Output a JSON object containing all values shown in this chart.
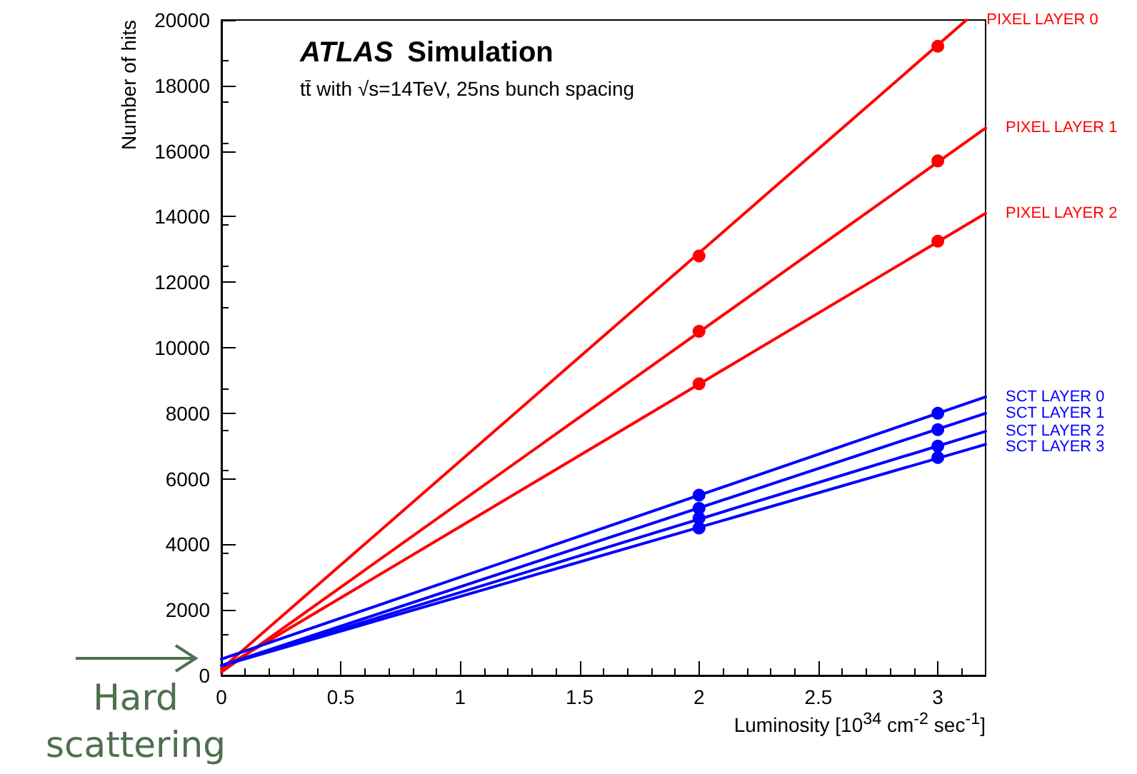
{
  "chart_data": {
    "type": "scatter",
    "title": "ATLAS Simulation",
    "subtitle": "tt̄ with √s=14TeV, 25ns bunch spacing",
    "xlabel": "Luminosity [10$^{34}$ cm$^{-2}$ sec$^{-1}$]",
    "ylabel": "Number of hits",
    "xlim": [
      0,
      3.2
    ],
    "xticks": [
      0,
      0.5,
      1,
      1.5,
      2,
      2.5,
      3
    ],
    "ylim": [
      0,
      20000
    ],
    "yticks": [
      0,
      2000,
      4000,
      6000,
      8000,
      10000,
      12000,
      14000,
      16000,
      18000,
      20000
    ],
    "grid": false,
    "legend": false,
    "marker": "circle",
    "annotations": [
      {
        "text": "Hard scattering",
        "x": 0,
        "y": 0
      }
    ],
    "series": [
      {
        "name": "PIXEL LAYER 0",
        "type": "line",
        "marker": "none",
        "color": "#ff0000",
        "x": [
          0,
          3.12
        ],
        "values": [
          200,
          20000
        ]
      },
      {
        "name": "PIXEL LAYER 1",
        "type": "line",
        "marker": "none",
        "color": "#ff0000",
        "x": [
          0,
          3.2
        ],
        "values": [
          100,
          16700
        ]
      },
      {
        "name": "PIXEL LAYER 2",
        "type": "line",
        "marker": "none",
        "color": "#ff0000",
        "x": [
          0,
          3.2
        ],
        "values": [
          200,
          14100
        ]
      },
      {
        "name": "SCT LAYER 0",
        "type": "line",
        "marker": "none",
        "color": "#0000ff",
        "x": [
          0,
          3.2
        ],
        "values": [
          500,
          8500
        ]
      },
      {
        "name": "SCT LAYER 1",
        "type": "line",
        "marker": "none",
        "color": "#0000ff",
        "x": [
          0,
          3.2
        ],
        "values": [
          300,
          8000
        ]
      },
      {
        "name": "SCT LAYER 2",
        "type": "line",
        "marker": "none",
        "color": "#0000ff",
        "x": [
          0,
          3.2
        ],
        "values": [
          300,
          7450
        ]
      },
      {
        "name": "SCT LAYER 3",
        "type": "line",
        "marker": "none",
        "color": "#0000ff",
        "x": [
          0,
          3.2
        ],
        "values": [
          300,
          7050
        ]
      },
      {
        "color": "#ff0000",
        "x": [
          2,
          3
        ],
        "values": [
          12800,
          19200
        ]
      },
      {
        "color": "#ff0000",
        "x": [
          2,
          3
        ],
        "values": [
          10500,
          15700
        ]
      },
      {
        "color": "#ff0000",
        "x": [
          2,
          3
        ],
        "values": [
          8900,
          13250
        ]
      },
      {
        "color": "#0000ff",
        "x": [
          2,
          3
        ],
        "values": [
          5500,
          8000
        ]
      },
      {
        "color": "#0000ff",
        "x": [
          2,
          3
        ],
        "values": [
          5100,
          7500
        ]
      },
      {
        "color": "#0000ff",
        "x": [
          2,
          3
        ],
        "values": [
          4800,
          7000
        ]
      },
      {
        "color": "#0000ff",
        "x": [
          2,
          3
        ],
        "values": [
          4500,
          6650
        ]
      }
    ]
  }
}
